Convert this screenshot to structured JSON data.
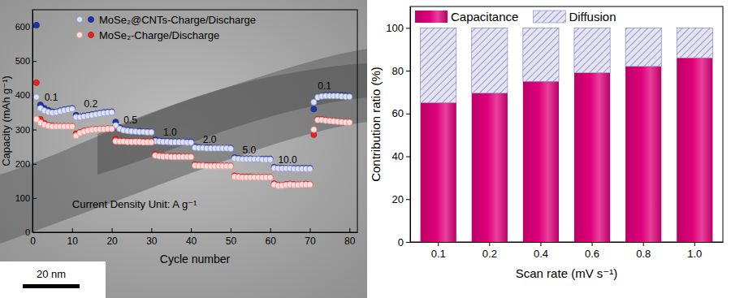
{
  "chart_data": [
    {
      "type": "scatter",
      "x_label": "Cycle number",
      "y_label": "Capacity (mAh g⁻¹)",
      "x": [
        1,
        2,
        3,
        4,
        5,
        6,
        7,
        8,
        9,
        10,
        11,
        12,
        13,
        14,
        15,
        16,
        17,
        18,
        19,
        20,
        21,
        22,
        23,
        24,
        25,
        26,
        27,
        28,
        29,
        30,
        31,
        32,
        33,
        34,
        35,
        36,
        37,
        38,
        39,
        40,
        41,
        42,
        43,
        44,
        45,
        46,
        47,
        48,
        49,
        50,
        51,
        52,
        53,
        54,
        55,
        56,
        57,
        58,
        59,
        60,
        61,
        62,
        63,
        64,
        65,
        66,
        67,
        68,
        69,
        70,
        71,
        72,
        73,
        74,
        75,
        76,
        77,
        78,
        79,
        80
      ],
      "series": [
        {
          "name": "MoSe₂@CNTs-Charge/Discharge",
          "color": "#1f35a5",
          "marker": "circle",
          "values": [
            605,
            372,
            362,
            356,
            352,
            352,
            355,
            358,
            360,
            362,
            342,
            338,
            340,
            342,
            344,
            346,
            348,
            350,
            351,
            352,
            322,
            306,
            300,
            298,
            296,
            295,
            295,
            294,
            294,
            293,
            270,
            267,
            266,
            266,
            265,
            265,
            265,
            264,
            264,
            264,
            250,
            248,
            247,
            247,
            247,
            246,
            246,
            246,
            246,
            246,
            218,
            216,
            215,
            215,
            215,
            214,
            214,
            214,
            214,
            214,
            190,
            188,
            188,
            187,
            187,
            187,
            187,
            187,
            187,
            187,
            360,
            392,
            398,
            400,
            400,
            400,
            400,
            400,
            399,
            398
          ],
          "charge": [
            395,
            362,
            355,
            351,
            349,
            350,
            353,
            356,
            358,
            360,
            336,
            336,
            338,
            340,
            342,
            344,
            346,
            348,
            349,
            350,
            312,
            302,
            298,
            296,
            295,
            294,
            293,
            293,
            292,
            292,
            266,
            265,
            264,
            264,
            263,
            263,
            263,
            263,
            262,
            262,
            247,
            246,
            246,
            245,
            245,
            245,
            245,
            245,
            245,
            244,
            215,
            214,
            213,
            213,
            213,
            213,
            213,
            212,
            212,
            212,
            187,
            186,
            186,
            186,
            186,
            185,
            185,
            185,
            185,
            185,
            380,
            394,
            397,
            398,
            398,
            398,
            398,
            397,
            396,
            396
          ]
        },
        {
          "name": "MoSe₂-Charge/Discharge",
          "color": "#e8231f",
          "marker": "circle",
          "values": [
            437,
            330,
            318,
            313,
            311,
            310,
            310,
            310,
            310,
            310,
            288,
            292,
            296,
            298,
            300,
            301,
            302,
            302,
            303,
            303,
            272,
            268,
            267,
            266,
            266,
            265,
            265,
            265,
            265,
            265,
            228,
            224,
            223,
            222,
            222,
            222,
            222,
            221,
            221,
            221,
            198,
            196,
            195,
            195,
            195,
            195,
            194,
            194,
            194,
            194,
            165,
            163,
            162,
            162,
            162,
            161,
            161,
            161,
            161,
            161,
            142,
            138,
            137,
            140,
            141,
            140,
            139,
            140,
            141,
            140,
            285,
            330,
            330,
            328,
            326,
            325,
            324,
            323,
            322,
            322
          ],
          "charge": [
            330,
            320,
            314,
            311,
            309,
            309,
            309,
            309,
            309,
            309,
            282,
            290,
            294,
            297,
            299,
            300,
            301,
            301,
            302,
            302,
            266,
            265,
            265,
            264,
            264,
            264,
            264,
            263,
            263,
            263,
            224,
            222,
            221,
            221,
            220,
            220,
            220,
            220,
            220,
            220,
            195,
            194,
            194,
            193,
            193,
            193,
            193,
            193,
            193,
            193,
            162,
            161,
            160,
            160,
            160,
            160,
            160,
            160,
            160,
            160,
            139,
            136,
            136,
            138,
            139,
            138,
            138,
            139,
            139,
            139,
            300,
            328,
            328,
            326,
            325,
            324,
            323,
            322,
            321,
            321
          ]
        }
      ],
      "xlim": [
        0,
        82
      ],
      "ylim": [
        0,
        650
      ],
      "xticks": [
        0,
        10,
        20,
        30,
        40,
        50,
        60,
        70,
        80
      ],
      "yticks": [
        0,
        100,
        200,
        300,
        400,
        500,
        600
      ],
      "legend": "upper left",
      "annotations": [
        {
          "text": "Current Density Unit: A g⁻¹",
          "x": 10,
          "y": 70
        },
        {
          "text": "0.1",
          "x": 3,
          "y": 385
        },
        {
          "text": "0.2",
          "x": 13,
          "y": 366
        },
        {
          "text": "0.5",
          "x": 23,
          "y": 318
        },
        {
          "text": "1.0",
          "x": 33,
          "y": 282
        },
        {
          "text": "2.0",
          "x": 43,
          "y": 262
        },
        {
          "text": "5.0",
          "x": 53,
          "y": 230
        },
        {
          "text": "10.0",
          "x": 62,
          "y": 202
        },
        {
          "text": "0.1",
          "x": 72,
          "y": 418
        }
      ]
    },
    {
      "type": "bar",
      "stacked": true,
      "x_label": "Scan rate (mV s⁻¹)",
      "y_label": "Contribution ratio (%)",
      "categories": [
        "0.1",
        "0.2",
        "0.4",
        "0.6",
        "0.8",
        "1.0"
      ],
      "series": [
        {
          "name": "Capacitance",
          "color": "#e0007a",
          "values": [
            65,
            69.5,
            75,
            79,
            82,
            86
          ]
        },
        {
          "name": "Diffusion",
          "color": "#8585c2",
          "values": [
            35,
            30.5,
            25,
            21,
            18,
            14
          ]
        }
      ],
      "ylim": [
        0,
        110
      ],
      "yticks": [
        0,
        20,
        40,
        60,
        80,
        100
      ],
      "legend": "upper left"
    }
  ],
  "image": {
    "scale_bar_label": "20 nm"
  }
}
